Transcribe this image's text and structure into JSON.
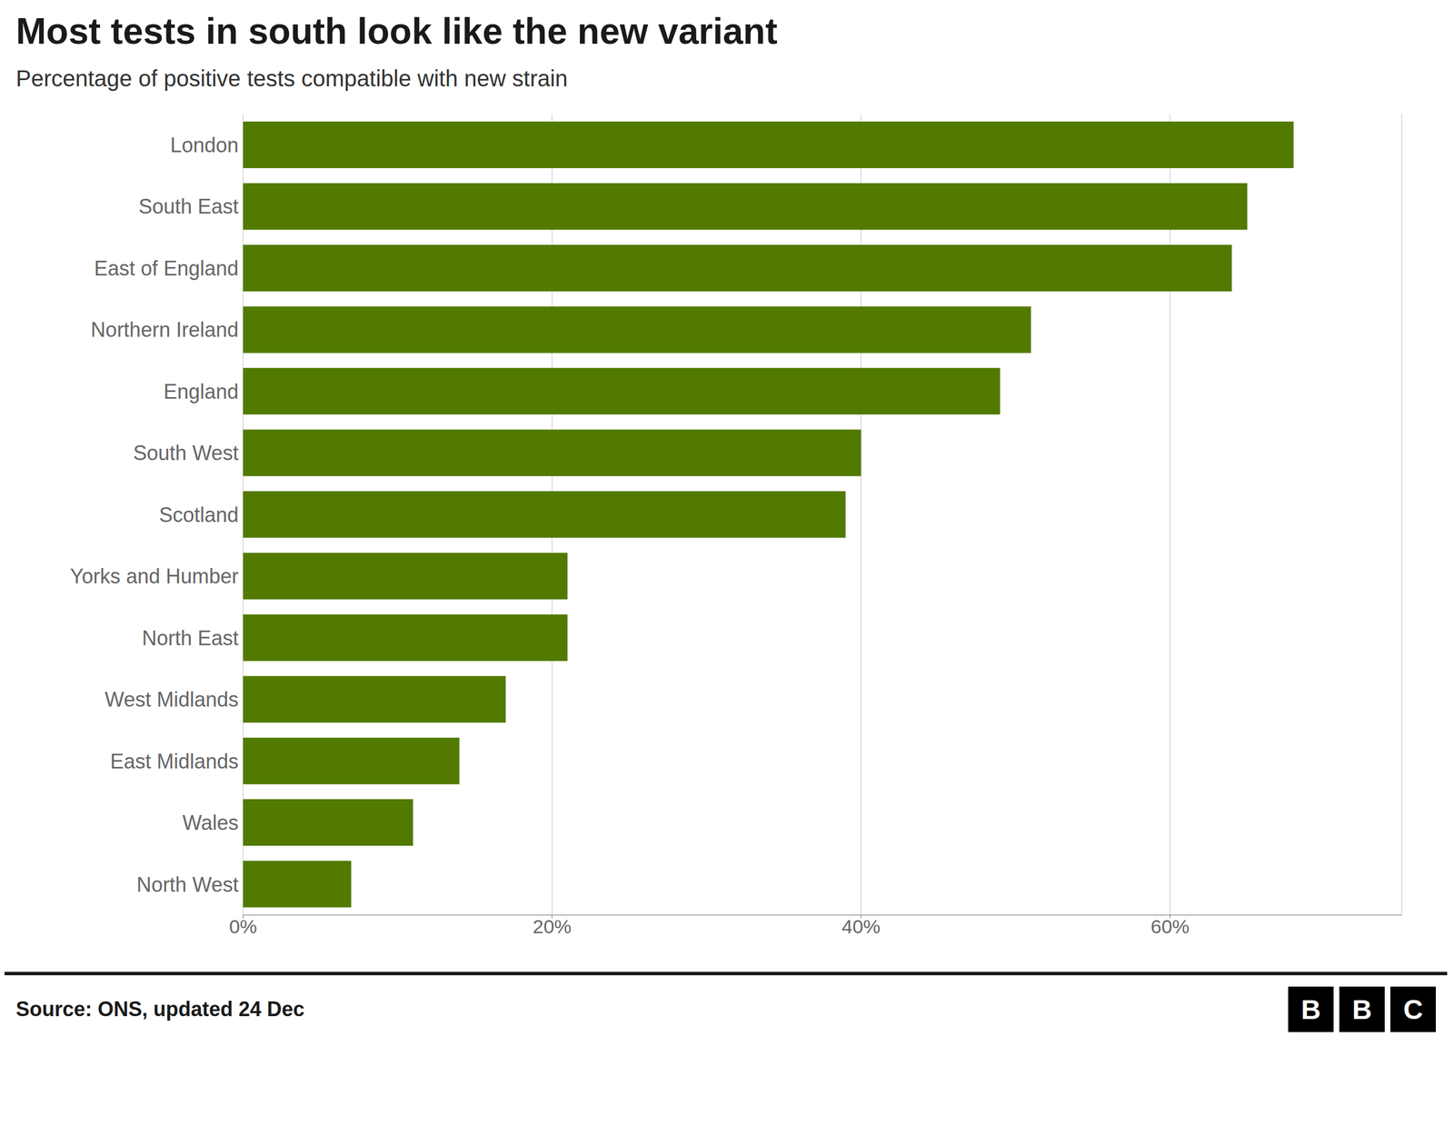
{
  "chart_data": {
    "type": "bar",
    "orientation": "horizontal",
    "title": "Most tests in south look like the new variant",
    "subtitle": "Percentage of positive tests compatible with new strain",
    "annotations": [
      "Source: ONS, updated 24 Dec",
      "BBC"
    ],
    "categories": [
      "London",
      "South East",
      "East of England",
      "Northern Ireland",
      "England",
      "South West",
      "Scotland",
      "Yorks and Humber",
      "North East",
      "West Midlands",
      "East Midlands",
      "Wales",
      "North West"
    ],
    "values": [
      68,
      65,
      64,
      51,
      49,
      40,
      39,
      21,
      21,
      17,
      14,
      11,
      7
    ],
    "color": "#527A00",
    "xlim": [
      0,
      75
    ],
    "xticks": [
      {
        "value": 0,
        "label": "0%"
      },
      {
        "value": 20,
        "label": "20%"
      },
      {
        "value": 40,
        "label": "40%"
      },
      {
        "value": 60,
        "label": "60%"
      }
    ],
    "grid": true
  }
}
